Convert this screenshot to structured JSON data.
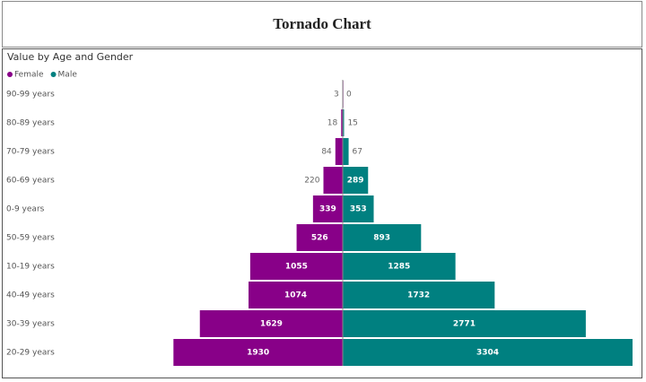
{
  "header": {
    "title": "Tornado Chart"
  },
  "chart_data": {
    "type": "tornado",
    "title": "Value by Age and Gender",
    "categories": [
      "90-99 years",
      "80-89 years",
      "70-79 years",
      "60-69 years",
      "0-9 years",
      "50-59 years",
      "10-19 years",
      "40-49 years",
      "30-39 years",
      "20-29 years"
    ],
    "series": [
      {
        "name": "Female",
        "color": "#880088",
        "values": [
          3,
          18,
          84,
          220,
          339,
          526,
          1055,
          1074,
          1629,
          1930
        ]
      },
      {
        "name": "Male",
        "color": "#008080",
        "values": [
          0,
          15,
          67,
          289,
          353,
          893,
          1285,
          1732,
          2771,
          3304
        ]
      }
    ]
  }
}
